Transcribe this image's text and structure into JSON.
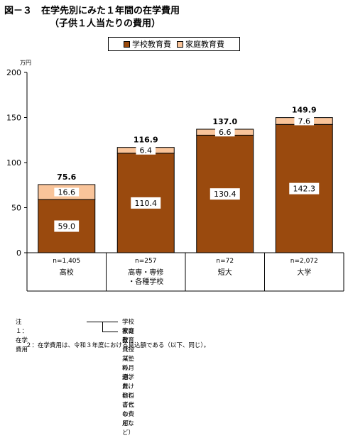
{
  "header": {
    "title": "図－３　在学先別にみた１年間の在学費用",
    "subtitle": "（子供１人当たりの費用）"
  },
  "legend": {
    "school_label": "学校教育費",
    "home_label": "家庭教育費"
  },
  "colors": {
    "school": "#9a4a0e",
    "home": "#f9c49a"
  },
  "unit_label": "万円",
  "chart_data": {
    "type": "bar",
    "stacked": true,
    "categories": [
      "高校",
      "高専・専修・各種学校",
      "短大",
      "大学"
    ],
    "category_lines": [
      [
        "高校"
      ],
      [
        "高専・専修",
        "・各種学校"
      ],
      [
        "短大"
      ],
      [
        "大学"
      ]
    ],
    "sample_sizes": [
      "n=1,405",
      "n=257",
      "n=72",
      "n=2,072"
    ],
    "series": [
      {
        "name": "学校教育費",
        "values": [
          59.0,
          110.4,
          130.4,
          142.3
        ],
        "labels": [
          "59.0",
          "110.4",
          "130.4",
          "142.3"
        ]
      },
      {
        "name": "家庭教育費",
        "values": [
          16.6,
          6.4,
          6.6,
          7.6
        ],
        "labels": [
          "16.6",
          "6.4",
          "6.6",
          "7.6"
        ]
      }
    ],
    "totals": [
      "75.6",
      "116.9",
      "137.0",
      "149.9"
    ],
    "ylabel": "万円",
    "ylim": [
      0,
      200
    ],
    "yticks": [
      0,
      50,
      100,
      150,
      200
    ],
    "grid": false,
    "legend_position": "top-center"
  },
  "notes": {
    "note1_label": "注　１：在学費用",
    "note1_a": "学校教育費（授業料、通学費、教科書代など）",
    "note1_b": "家庭教育費（塾の月謝、おけいこごとの費用など）",
    "note2": "２：在学費用は、令和３年度における見込額である（以下、同じ）。"
  }
}
